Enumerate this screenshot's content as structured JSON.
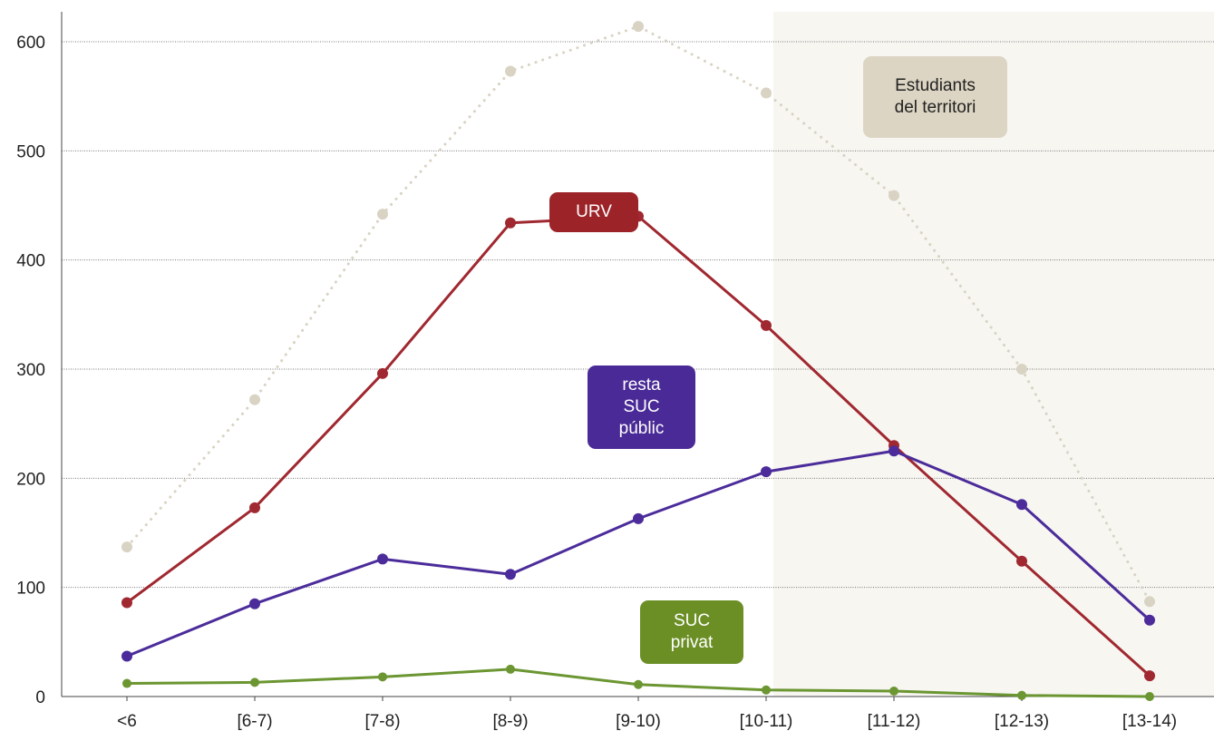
{
  "chart_data": {
    "type": "line",
    "categories": [
      "<6",
      "[6-7)",
      "[7-8)",
      "[8-9)",
      "[9-10)",
      "[10-11)",
      "[11-12)",
      "[12-13)",
      "[13-14)"
    ],
    "ylim": [
      0,
      620
    ],
    "yticks": [
      0,
      100,
      200,
      300,
      400,
      500,
      600
    ],
    "grid": "horizontal dotted",
    "shaded_region": {
      "from_category": "[10-11)",
      "to": "end",
      "color": "#f7f6f1"
    },
    "series": [
      {
        "name": "Estudiants\ndel territori",
        "color": "#d9d3c4",
        "line_style": "dotted",
        "label_bg": "#dcd5c3",
        "label_text_color": "#222222",
        "values": [
          137,
          272,
          442,
          573,
          614,
          553,
          459,
          300,
          87
        ]
      },
      {
        "name": "URV",
        "color": "#a02830",
        "line_style": "solid",
        "label_bg": "#9c2328",
        "label_text_color": "#ffffff",
        "values": [
          86,
          173,
          296,
          434,
          440,
          340,
          230,
          124,
          19
        ]
      },
      {
        "name": "resta\nSUC\npúblic",
        "color": "#4b2c9a",
        "line_style": "solid",
        "label_bg": "#4a2a96",
        "label_text_color": "#ffffff",
        "values": [
          37,
          85,
          126,
          112,
          163,
          206,
          225,
          176,
          70
        ]
      },
      {
        "name": "SUC\nprivat",
        "color": "#6b9632",
        "line_style": "solid",
        "label_bg": "#6b8f25",
        "label_text_color": "#ffffff",
        "values": [
          12,
          13,
          18,
          25,
          11,
          6,
          5,
          1,
          0
        ]
      }
    ]
  }
}
